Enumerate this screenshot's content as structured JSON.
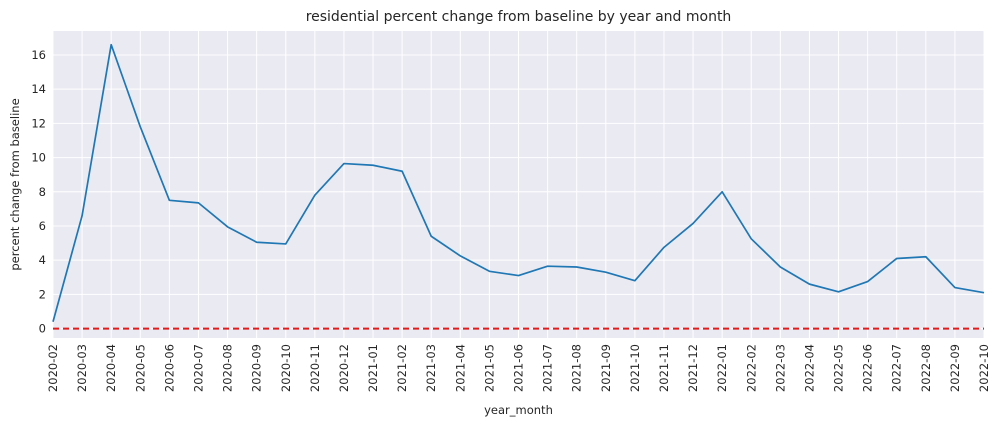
{
  "chart_data": {
    "type": "line",
    "title": "residential percent change from baseline by year and month",
    "xlabel": "year_month",
    "ylabel": "percent change from baseline",
    "categories": [
      "2020-02",
      "2020-03",
      "2020-04",
      "2020-05",
      "2020-06",
      "2020-07",
      "2020-08",
      "2020-09",
      "2020-10",
      "2020-11",
      "2020-12",
      "2021-01",
      "2021-02",
      "2021-03",
      "2021-04",
      "2021-05",
      "2021-06",
      "2021-07",
      "2021-08",
      "2021-09",
      "2021-10",
      "2021-11",
      "2021-12",
      "2022-01",
      "2022-02",
      "2022-03",
      "2022-04",
      "2022-05",
      "2022-06",
      "2022-07",
      "2022-08",
      "2022-09",
      "2022-10"
    ],
    "series": [
      {
        "values": [
          0.4,
          6.6,
          16.6,
          11.8,
          7.5,
          7.35,
          5.95,
          5.05,
          4.95,
          7.8,
          9.65,
          9.55,
          9.2,
          5.4,
          4.25,
          3.35,
          3.1,
          3.65,
          3.6,
          3.3,
          2.8,
          4.75,
          6.15,
          8.0,
          5.25,
          3.6,
          2.6,
          2.15,
          2.75,
          4.1,
          4.2,
          2.4,
          2.1
        ],
        "color": "#1f77b4"
      }
    ],
    "yticks": [
      0,
      2,
      4,
      6,
      8,
      10,
      12,
      14,
      16
    ],
    "ylim": [
      -0.55,
      17.4
    ],
    "reference_line": {
      "y": 0,
      "color": "#e31a1c",
      "style": "dashed"
    },
    "grid": true,
    "background": "#eaeaf2"
  }
}
